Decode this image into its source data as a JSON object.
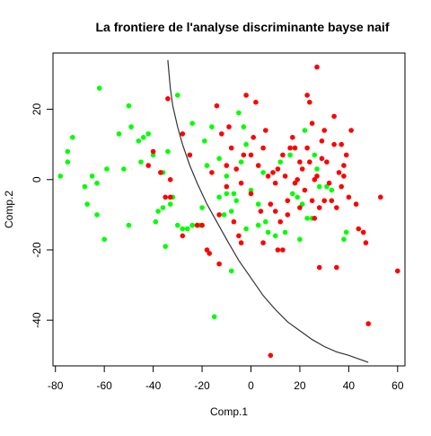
{
  "chart_data": {
    "type": "scatter",
    "title": "La frontiere de l'analyse discriminante bayse naif",
    "xlabel": "Comp.1",
    "ylabel": "Comp.2",
    "xlim": [
      -81,
      63
    ],
    "ylim": [
      -53,
      36
    ],
    "x_ticks": [
      -80,
      -60,
      -40,
      -20,
      0,
      20,
      40,
      60
    ],
    "y_ticks": [
      -40,
      -20,
      0,
      20
    ],
    "x_tick_labels": [
      "-80",
      "-60",
      "-40",
      "-20",
      "0",
      "20",
      "40",
      "60"
    ],
    "y_tick_labels": [
      "-40",
      "-20",
      "0",
      "20"
    ],
    "grid": false,
    "legend": "none",
    "colors": {
      "series_a": "#00ff00",
      "series_b": "#ff0000",
      "boundary": "#333333"
    },
    "series": [
      {
        "color": "#00ff00",
        "points": [
          [
            -78,
            1
          ],
          [
            -75,
            5
          ],
          [
            -75,
            8
          ],
          [
            -73,
            12
          ],
          [
            -68,
            -2
          ],
          [
            -67,
            -7
          ],
          [
            -65,
            1
          ],
          [
            -63,
            -1
          ],
          [
            -62,
            26
          ],
          [
            -63,
            -10
          ],
          [
            -59,
            3
          ],
          [
            -60,
            -17
          ],
          [
            -54,
            13
          ],
          [
            -52,
            3
          ],
          [
            -50,
            21
          ],
          [
            -50,
            -13
          ],
          [
            -46,
            11
          ],
          [
            -49,
            15
          ],
          [
            -45,
            5
          ],
          [
            -44,
            12
          ],
          [
            -42,
            13
          ],
          [
            -40,
            7
          ],
          [
            -38,
            -9
          ],
          [
            -36,
            2
          ],
          [
            -34,
            8
          ],
          [
            -35,
            -19
          ],
          [
            -32,
            -5
          ],
          [
            -30,
            24
          ],
          [
            -30,
            -13
          ],
          [
            -26,
            -14
          ],
          [
            -24,
            16
          ],
          [
            -21,
            -13
          ],
          [
            -20,
            -8
          ],
          [
            -19,
            11
          ],
          [
            -18,
            4
          ],
          [
            -16,
            15
          ],
          [
            -15,
            -39
          ],
          [
            -13,
            6
          ],
          [
            -11,
            -10
          ],
          [
            -10,
            -4
          ],
          [
            -8,
            -26
          ],
          [
            -6,
            -6
          ],
          [
            -4,
            5
          ],
          [
            -2,
            10
          ],
          [
            -3,
            15
          ],
          [
            0,
            -3
          ],
          [
            3,
            -7
          ],
          [
            5,
            2
          ],
          [
            6,
            -12
          ],
          [
            7,
            -15
          ],
          [
            10,
            -16
          ],
          [
            12,
            5
          ],
          [
            14,
            -15
          ],
          [
            16,
            7
          ],
          [
            17,
            -4
          ],
          [
            19,
            -5
          ],
          [
            20,
            -17
          ],
          [
            21,
            -7
          ],
          [
            23,
            -11
          ],
          [
            25,
            -11
          ],
          [
            26,
            7
          ],
          [
            27,
            3
          ],
          [
            28,
            -2
          ],
          [
            31,
            -2
          ],
          [
            33,
            -3
          ],
          [
            39,
            -15
          ],
          [
            -33,
            -7
          ],
          [
            -13,
            -5
          ],
          [
            -8,
            -9
          ],
          [
            -7,
            -4
          ],
          [
            -5,
            19
          ],
          [
            -24,
            -13
          ],
          [
            -28,
            -14
          ],
          [
            -36,
            -8
          ],
          [
            -39,
            -12
          ],
          [
            22,
            14
          ],
          [
            38,
            -17
          ],
          [
            3,
            -13
          ],
          [
            -10,
            1
          ],
          [
            -2,
            -14
          ]
        ]
      },
      {
        "color": "#ff0000",
        "points": [
          [
            27,
            32
          ],
          [
            -34,
            23
          ],
          [
            -28,
            13
          ],
          [
            -35,
            -5
          ],
          [
            -33,
            -5
          ],
          [
            -37,
            2
          ],
          [
            -33,
            0
          ],
          [
            -42,
            4
          ],
          [
            -22,
            -13
          ],
          [
            -18,
            -20
          ],
          [
            -17,
            -21
          ],
          [
            -13,
            -24
          ],
          [
            -16,
            2
          ],
          [
            -14,
            21
          ],
          [
            -12,
            13
          ],
          [
            -9,
            15
          ],
          [
            -8,
            9
          ],
          [
            -6,
            3
          ],
          [
            -4,
            -1
          ],
          [
            -3,
            7
          ],
          [
            -2,
            24
          ],
          [
            1,
            12
          ],
          [
            2,
            22
          ],
          [
            3,
            4
          ],
          [
            5,
            9
          ],
          [
            7,
            1
          ],
          [
            8,
            -7
          ],
          [
            9,
            2
          ],
          [
            10,
            -9
          ],
          [
            11,
            3
          ],
          [
            12,
            -12
          ],
          [
            13,
            7
          ],
          [
            14,
            1
          ],
          [
            15,
            -6
          ],
          [
            16,
            9
          ],
          [
            17,
            12
          ],
          [
            18,
            -1
          ],
          [
            19,
            0
          ],
          [
            20,
            5
          ],
          [
            21,
            3
          ],
          [
            22,
            -3
          ],
          [
            23,
            24
          ],
          [
            24,
            22
          ],
          [
            25,
            16
          ],
          [
            26,
            0
          ],
          [
            27,
            1
          ],
          [
            28,
            -8
          ],
          [
            29,
            11
          ],
          [
            30,
            14
          ],
          [
            31,
            5
          ],
          [
            32,
            -1
          ],
          [
            33,
            -6
          ],
          [
            34,
            18
          ],
          [
            35,
            -25
          ],
          [
            36,
            2
          ],
          [
            37,
            -2
          ],
          [
            38,
            4
          ],
          [
            39,
            7
          ],
          [
            40,
            -5
          ],
          [
            41,
            14
          ],
          [
            43,
            -7
          ],
          [
            46,
            -15
          ],
          [
            47,
            -18
          ],
          [
            48,
            -41
          ],
          [
            53,
            -5
          ],
          [
            60,
            -26
          ],
          [
            8,
            -50
          ],
          [
            11,
            -20
          ],
          [
            -4,
            -18
          ],
          [
            -10,
            -2
          ],
          [
            0,
            -4
          ],
          [
            4,
            -9
          ],
          [
            6,
            14
          ],
          [
            13,
            -20
          ],
          [
            18,
            9
          ],
          [
            24,
            5
          ],
          [
            26,
            -11
          ],
          [
            28,
            -25
          ],
          [
            35,
            -8
          ],
          [
            38,
            1
          ],
          [
            30,
            -6
          ],
          [
            25,
            -6
          ],
          [
            20,
            -8
          ],
          [
            15,
            -10
          ],
          [
            10,
            -1
          ],
          [
            5,
            -18
          ],
          [
            23,
            9
          ],
          [
            34,
            10
          ],
          [
            37,
            10
          ],
          [
            29,
            6
          ],
          [
            -40,
            8
          ],
          [
            -28,
            -16
          ],
          [
            -13,
            -10
          ],
          [
            -20,
            -13
          ],
          [
            -25,
            7
          ],
          [
            -10,
            4
          ],
          [
            -7,
            -12
          ],
          [
            0,
            7
          ],
          [
            -5,
            -16
          ],
          [
            44,
            -14
          ]
        ]
      }
    ],
    "boundary": [
      [
        -34,
        34
      ],
      [
        -33,
        26
      ],
      [
        -32,
        21
      ],
      [
        -30,
        15
      ],
      [
        -28,
        10
      ],
      [
        -25,
        4
      ],
      [
        -22,
        -1
      ],
      [
        -18,
        -7
      ],
      [
        -14,
        -12
      ],
      [
        -10,
        -17
      ],
      [
        -5,
        -23
      ],
      [
        0,
        -28
      ],
      [
        5,
        -33
      ],
      [
        10,
        -37
      ],
      [
        15,
        -40.5
      ],
      [
        20,
        -43
      ],
      [
        25,
        -45.5
      ],
      [
        30,
        -47.5
      ],
      [
        35,
        -49
      ],
      [
        40,
        -50
      ],
      [
        48,
        -52
      ]
    ]
  }
}
